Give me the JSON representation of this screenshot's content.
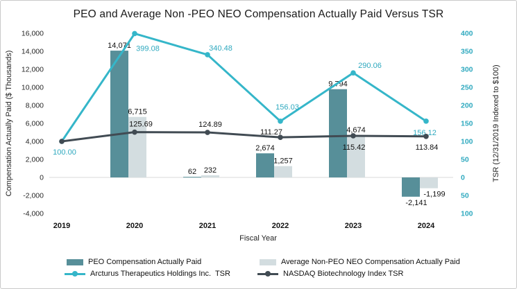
{
  "title": "PEO and Average Non -PEO NEO Compensation Actually Paid Versus TSR",
  "chart_data": {
    "type": "combo-bar-line",
    "x": [
      "2019",
      "2020",
      "2021",
      "2022",
      "2023",
      "2024"
    ],
    "xlabel": "Fiscal Year",
    "grid": "off",
    "legend_position": "bottom",
    "left_axis": {
      "label": "Compensation Actually Paid ($ Thousands)",
      "min": -4000,
      "max": 16000,
      "step": 2000,
      "tick_labels": [
        "16,000",
        "14,000",
        "12,000",
        "10,000",
        "8,000",
        "6,000",
        "4,000",
        "2,000",
        "0",
        "-2,000",
        "-4,000"
      ]
    },
    "right_axis": {
      "label": "TSR (12/31/2019 Indexed to $100)",
      "min": -100,
      "max": 400,
      "step": 50,
      "tick_labels": [
        "400",
        "350",
        "300",
        "250",
        "200",
        "150",
        "100",
        "50",
        "0",
        "50",
        "100"
      ],
      "color": "#2fa9bf"
    },
    "series": [
      {
        "name": "PEO Compensation Actually Paid",
        "type": "bar",
        "axis": "left",
        "color": "#578f99",
        "values": [
          null,
          14071,
          62,
          2674,
          9794,
          -2141
        ],
        "labels": [
          "",
          "14,071",
          "62",
          "2,674",
          "9,794",
          "-2,141"
        ]
      },
      {
        "name": "Average Non-PEO NEO Compensation Actually Paid",
        "type": "bar",
        "axis": "left",
        "color": "#d3dde0",
        "values": [
          null,
          6715,
          232,
          1257,
          4674,
          -1199
        ],
        "labels": [
          "",
          "6,715",
          "232",
          "1,257",
          "4,674",
          "-1,199"
        ]
      },
      {
        "name": "Arcturus Therapeutics Holdings Inc.  TSR",
        "type": "line",
        "axis": "right",
        "color": "#35b6c9",
        "values": [
          100.0,
          399.08,
          340.48,
          156.03,
          290.06,
          156.12
        ],
        "labels": [
          "100.00",
          "399.08",
          "340.48",
          "156.03",
          "290.06",
          "156.12"
        ]
      },
      {
        "name": "NASDAQ Biotechnology Index TSR",
        "type": "line",
        "axis": "right",
        "color": "#414b53",
        "values": [
          100.0,
          125.69,
          124.89,
          111.27,
          115.42,
          113.84
        ],
        "labels": [
          "",
          "125.69",
          "124.89",
          "111.27",
          "115.42",
          "113.84"
        ]
      }
    ]
  }
}
